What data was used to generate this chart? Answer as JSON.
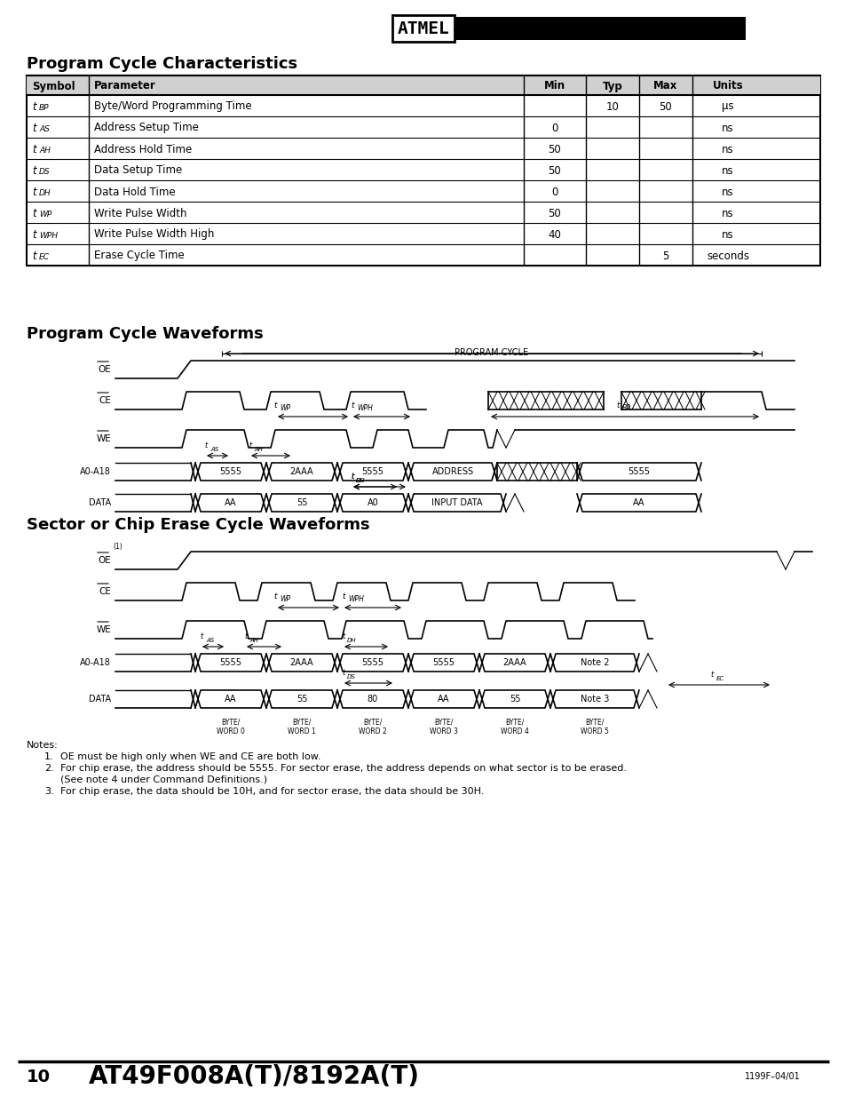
{
  "title_char": "Program Cycle Characteristics",
  "title_wave1": "Program Cycle Waveforms",
  "title_wave2": "Sector or Chip Erase Cycle Waveforms",
  "table_headers": [
    "Symbol",
    "Parameter",
    "Min",
    "Typ",
    "Max",
    "Units"
  ],
  "table_rows": [
    [
      "t₀_BP",
      "Byte/Word Programming Time",
      "",
      "10",
      "50",
      "μs"
    ],
    [
      "t₀_AS",
      "Address Setup Time",
      "0",
      "",
      "",
      "ns"
    ],
    [
      "t₀_AH",
      "Address Hold Time",
      "50",
      "",
      "",
      "ns"
    ],
    [
      "t₀_DS",
      "Data Setup Time",
      "50",
      "",
      "",
      "ns"
    ],
    [
      "t₀_DH",
      "Data Hold Time",
      "0",
      "",
      "",
      "ns"
    ],
    [
      "t₀_WP",
      "Write Pulse Width",
      "50",
      "",
      "",
      "ns"
    ],
    [
      "t₀_WPH",
      "Write Pulse Width High",
      "40",
      "",
      "",
      "ns"
    ],
    [
      "t₀_EC",
      "Erase Cycle Time",
      "",
      "",
      "5",
      "seconds"
    ]
  ],
  "table_symbols": [
    "t_BP",
    "t_AS",
    "t_AH",
    "t_DS",
    "t_DH",
    "t_WP",
    "t_WPH",
    "t_EC"
  ],
  "table_params": [
    "Byte/Word Programming Time",
    "Address Setup Time",
    "Address Hold Time",
    "Data Setup Time",
    "Data Hold Time",
    "Write Pulse Width",
    "Write Pulse Width High",
    "Erase Cycle Time"
  ],
  "table_min": [
    "",
    "0",
    "50",
    "50",
    "0",
    "50",
    "40",
    ""
  ],
  "table_typ": [
    "10",
    "",
    "",
    "",
    "",
    "",
    "",
    ""
  ],
  "table_max": [
    "50",
    "",
    "",
    "",
    "",
    "",
    "",
    "5"
  ],
  "table_units": [
    "μs",
    "ns",
    "ns",
    "ns",
    "ns",
    "ns",
    "ns",
    "seconds"
  ],
  "bg_color": "#ffffff",
  "text_color": "#000000",
  "line_color": "#000000",
  "notes": [
    "1.    ̲OE̲ must be high only when ̲WE̲ and ̲CE̲ are both low.",
    "2.    For chip erase, the address should be 5555. For sector erase, the address depends on what sector is to be erased.",
    "      (See note 4 under Command Definitions.)",
    "3.    For chip erase, the data should be 10H, and for sector erase, the data should be 30H."
  ],
  "footer_model": "AT49F008A(T)/8192A(T)",
  "footer_page": "10",
  "footer_code": "1199F–04/01"
}
